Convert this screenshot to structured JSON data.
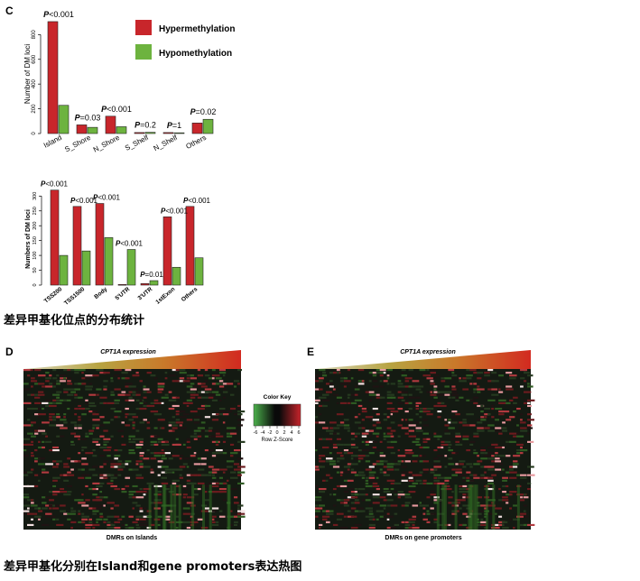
{
  "colors": {
    "hyper": "#c8262b",
    "hypo": "#6db33f",
    "gradient_start": "#c9c9a3",
    "gradient_mid": "#c3892b",
    "gradient_end": "#d22a20",
    "heat_low": "#2f8f2f",
    "heat_mid": "#000000",
    "heat_high": "#c2222a"
  },
  "panel_c_label": "C",
  "panel_d_label": "D",
  "panel_e_label": "E",
  "caption1": "差异甲基化位点的分布统计",
  "caption2": "差异甲基化分别在Island和gene promoters表达热图",
  "chart_data": [
    {
      "type": "bar",
      "panel": "C-top",
      "categories": [
        "Island",
        "S_Shore",
        "N_Shore",
        "S_Shelf",
        "N_Shelf",
        "Others"
      ],
      "series": [
        {
          "name": "Hypermethylation",
          "values": [
            905,
            70,
            140,
            8,
            8,
            85
          ]
        },
        {
          "name": "Hypomethylation",
          "values": [
            228,
            50,
            55,
            10,
            6,
            115
          ]
        }
      ],
      "pvalues": [
        "P<0.001",
        "P=0.03",
        "P<0.001",
        "P=0.2",
        "P=1",
        "P=0.02"
      ],
      "ylabel": "Number of DM loci",
      "yticks": [
        "0",
        "200",
        "400",
        "600",
        "800"
      ],
      "ylim": [
        0,
        920
      ],
      "legend": {
        "position": "top-right",
        "labels": [
          "Hypermethylation",
          "Hypomethylation"
        ]
      }
    },
    {
      "type": "bar",
      "panel": "C-bottom",
      "categories": [
        "TSS200",
        "TSS1500",
        "Body",
        "5'UTR",
        "3'UTR",
        "1stExon",
        "Others"
      ],
      "series": [
        {
          "name": "Hypermethylation",
          "values": [
            320,
            265,
            275,
            2,
            5,
            230,
            265
          ]
        },
        {
          "name": "Hypomethylation",
          "values": [
            100,
            115,
            160,
            120,
            15,
            60,
            92
          ]
        }
      ],
      "pvalues": [
        "P<0.001",
        "P<0.001",
        "P<0.001",
        "P<0.001",
        "P=0.01",
        "P<0.001",
        "P<0.001"
      ],
      "ylabel": "Numbers of DM loci",
      "yticks": [
        "0",
        "50",
        "100",
        "150",
        "200",
        "250",
        "300"
      ],
      "ylim": [
        0,
        330
      ]
    },
    {
      "type": "heatmap",
      "panel": "D",
      "title": "CPT1A expression",
      "xlabel": "DMRs on Islands"
    },
    {
      "type": "heatmap",
      "panel": "E",
      "title": "CPT1A expression",
      "xlabel": "DMRs on gene promoters"
    }
  ],
  "color_key": {
    "title": "Color Key",
    "ticks": [
      "-6",
      "-4",
      "-2",
      "0",
      "2",
      "4",
      "6"
    ],
    "label": "Row Z-Score"
  }
}
